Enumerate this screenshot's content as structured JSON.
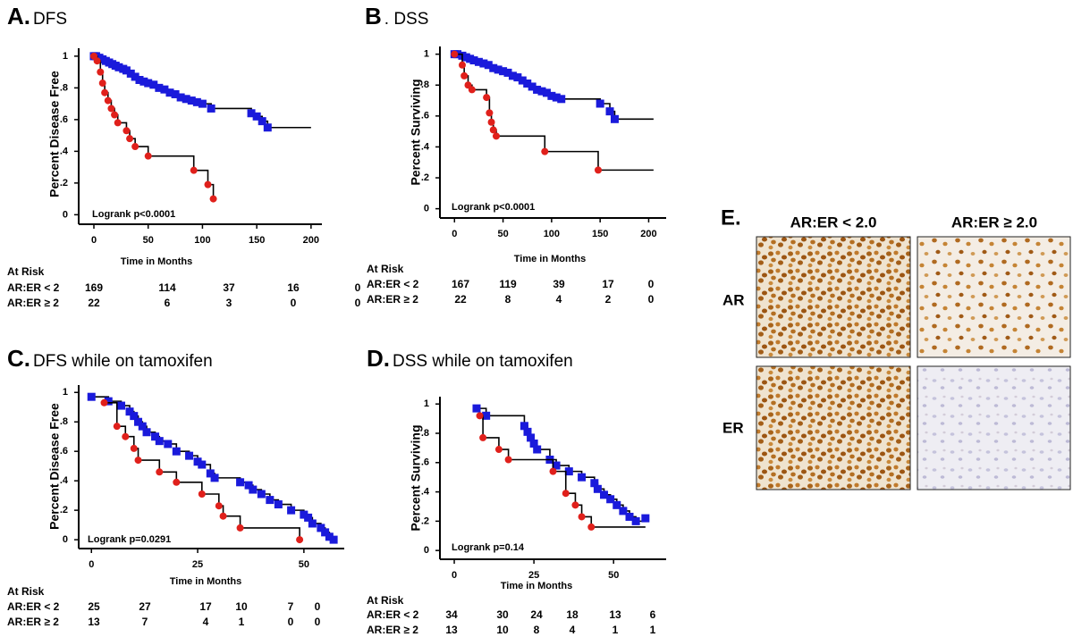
{
  "chart_data": [
    {
      "type": "step",
      "panel_label": "A.",
      "title": "DFS",
      "xlabel": "Time in Months",
      "ylabel": "Percent Disease Free",
      "annotation": "Logrank p<0.0001",
      "xlim": [
        -14,
        210
      ],
      "ylim": [
        -0.06,
        1.05
      ],
      "xticks": [
        0,
        50,
        100,
        150,
        200
      ],
      "yticks": [
        0,
        {
          "value": 0.2,
          "label": ".2"
        },
        {
          "value": 0.4,
          "label": ".4"
        },
        {
          "value": 0.6,
          "label": ".6"
        },
        {
          "value": 0.8,
          "label": ".8"
        },
        1
      ],
      "series": [
        {
          "color": "#1a1adb",
          "marker": "square",
          "line_end": 200,
          "x": [
            0,
            2,
            5,
            8,
            11,
            14,
            17,
            20,
            23,
            27,
            30,
            34,
            38,
            42,
            46,
            50,
            55,
            60,
            65,
            70,
            75,
            80,
            85,
            90,
            95,
            100,
            108,
            145,
            150,
            155,
            160
          ],
          "values": [
            1,
            1,
            0.99,
            0.98,
            0.97,
            0.96,
            0.95,
            0.94,
            0.93,
            0.92,
            0.91,
            0.89,
            0.87,
            0.85,
            0.84,
            0.83,
            0.82,
            0.8,
            0.79,
            0.77,
            0.76,
            0.74,
            0.73,
            0.72,
            0.71,
            0.7,
            0.67,
            0.64,
            0.62,
            0.59,
            0.55
          ]
        },
        {
          "color": "#e0201b",
          "marker": "circle",
          "x": [
            0,
            3,
            6,
            8,
            10,
            13,
            16,
            19,
            22,
            30,
            33,
            38,
            50,
            92,
            105,
            110
          ],
          "values": [
            1,
            0.97,
            0.9,
            0.83,
            0.77,
            0.72,
            0.67,
            0.63,
            0.58,
            0.53,
            0.48,
            0.43,
            0.37,
            0.28,
            0.19,
            0.1
          ]
        }
      ],
      "at_risk": {
        "title": "At Risk",
        "rows": [
          {
            "name": "AR:ER < 2",
            "values": [
              169,
              114,
              37,
              16,
              0
            ]
          },
          {
            "name": "AR:ER ≥ 2",
            "values": [
              22,
              6,
              3,
              0,
              0
            ]
          }
        ]
      }
    },
    {
      "type": "step",
      "panel_label": "B",
      "title": ". DSS",
      "xlabel": "Time in Months",
      "ylabel": "Percent Surviving",
      "annotation": "Logrank p<0.0001",
      "xlim": [
        -15,
        218
      ],
      "ylim": [
        -0.06,
        1.05
      ],
      "xticks": [
        0,
        50,
        100,
        150,
        200
      ],
      "yticks": [
        0,
        {
          "value": 0.2,
          "label": ".2"
        },
        {
          "value": 0.4,
          "label": ".4"
        },
        {
          "value": 0.6,
          "label": ".6"
        },
        {
          "value": 0.8,
          "label": ".8"
        },
        1
      ],
      "series": [
        {
          "color": "#1a1adb",
          "marker": "square",
          "line_end": 205,
          "x": [
            0,
            3,
            8,
            12,
            16,
            20,
            25,
            30,
            35,
            40,
            45,
            50,
            55,
            60,
            65,
            70,
            75,
            80,
            85,
            90,
            95,
            100,
            105,
            110,
            150,
            160,
            165
          ],
          "values": [
            1,
            1,
            0.99,
            0.98,
            0.97,
            0.96,
            0.95,
            0.94,
            0.93,
            0.91,
            0.9,
            0.89,
            0.88,
            0.86,
            0.85,
            0.83,
            0.81,
            0.79,
            0.77,
            0.76,
            0.75,
            0.73,
            0.72,
            0.71,
            0.68,
            0.63,
            0.58
          ]
        },
        {
          "color": "#e0201b",
          "marker": "circle",
          "line_end": 205,
          "x": [
            0,
            8,
            10,
            14,
            18,
            33,
            36,
            38,
            40,
            43,
            93,
            148
          ],
          "values": [
            1,
            0.93,
            0.86,
            0.8,
            0.77,
            0.72,
            0.62,
            0.56,
            0.51,
            0.47,
            0.37,
            0.25
          ]
        }
      ],
      "at_risk": {
        "title": "At Risk",
        "rows": [
          {
            "name": "AR:ER < 2",
            "values": [
              167,
              119,
              39,
              17,
              0
            ]
          },
          {
            "name": "AR:ER ≥ 2",
            "values": [
              22,
              8,
              4,
              2,
              0
            ]
          }
        ]
      }
    },
    {
      "type": "step",
      "panel_label": "C.",
      "title": "DFS  while on tamoxifen",
      "xlabel": "Time in Months",
      "ylabel": "Percent Disease Free",
      "annotation": "Logrank p=0.0291",
      "xlim": [
        -3,
        59.5
      ],
      "ylim": [
        -0.06,
        1.05
      ],
      "xticks": [
        0,
        25,
        50
      ],
      "yticks": [
        0,
        {
          "value": 0.2,
          "label": ".2"
        },
        {
          "value": 0.4,
          "label": ".4"
        },
        {
          "value": 0.6,
          "label": ".6"
        },
        {
          "value": 0.8,
          "label": ".8"
        },
        1
      ],
      "series": [
        {
          "color": "#1a1adb",
          "marker": "square",
          "x": [
            0,
            4,
            7,
            9,
            10,
            11,
            12,
            13,
            15,
            16,
            18,
            20,
            23,
            25,
            26,
            28,
            29,
            35,
            37,
            38,
            40,
            42,
            44,
            47,
            50,
            51,
            52,
            54,
            55,
            56,
            57
          ],
          "values": [
            0.97,
            0.94,
            0.91,
            0.87,
            0.84,
            0.8,
            0.77,
            0.73,
            0.7,
            0.67,
            0.65,
            0.6,
            0.57,
            0.53,
            0.51,
            0.45,
            0.42,
            0.39,
            0.37,
            0.34,
            0.31,
            0.27,
            0.24,
            0.2,
            0.17,
            0.15,
            0.11,
            0.08,
            0.05,
            0.02,
            0
          ]
        },
        {
          "color": "#e0201b",
          "marker": "circle",
          "x": [
            3,
            6,
            8,
            10,
            11,
            16,
            20,
            26,
            30,
            31,
            35,
            49
          ],
          "values": [
            0.93,
            0.77,
            0.7,
            0.62,
            0.54,
            0.46,
            0.39,
            0.31,
            0.23,
            0.16,
            0.08,
            0
          ]
        }
      ],
      "at_risk": {
        "title": "At Risk",
        "rows": [
          {
            "name": "AR:ER < 2",
            "values": [
              25,
              27,
              17,
              10,
              7,
              0
            ]
          },
          {
            "name": "AR:ER ≥ 2",
            "values": [
              13,
              7,
              4,
              1,
              0,
              0
            ]
          }
        ]
      }
    },
    {
      "type": "step",
      "panel_label": "D.",
      "title": "DSS while on tamoxifen",
      "xlabel": "Time in Months",
      "ylabel": "Percent Surviving",
      "annotation": "Logrank p=0.14",
      "xlim": [
        -4.5,
        66.5
      ],
      "ylim": [
        -0.06,
        1.05
      ],
      "xticks": [
        0,
        25,
        50
      ],
      "yticks": [
        0,
        {
          "value": 0.2,
          "label": ".2"
        },
        {
          "value": 0.4,
          "label": ".4"
        },
        {
          "value": 0.6,
          "label": ".6"
        },
        {
          "value": 0.8,
          "label": ".8"
        },
        1
      ],
      "series": [
        {
          "color": "#1a1adb",
          "marker": "square",
          "x": [
            7,
            10,
            22,
            23,
            24,
            25,
            26,
            30,
            32,
            36,
            40,
            44,
            45,
            47,
            49,
            51,
            53,
            55,
            57,
            60
          ],
          "values": [
            0.97,
            0.92,
            0.85,
            0.81,
            0.77,
            0.73,
            0.69,
            0.62,
            0.58,
            0.54,
            0.5,
            0.46,
            0.42,
            0.38,
            0.35,
            0.31,
            0.27,
            0.23,
            0.2,
            0.22
          ]
        },
        {
          "color": "#e0201b",
          "marker": "circle",
          "line_end": 60,
          "x": [
            8,
            9,
            14,
            17,
            31,
            35,
            38,
            40,
            43
          ],
          "values": [
            0.92,
            0.77,
            0.69,
            0.62,
            0.54,
            0.39,
            0.31,
            0.23,
            0.16
          ]
        }
      ],
      "at_risk": {
        "title": "At Risk",
        "rows": [
          {
            "name": "AR:ER < 2",
            "values": [
              34,
              30,
              24,
              18,
              13,
              6
            ]
          },
          {
            "name": "AR:ER ≥ 2",
            "values": [
              13,
              10,
              8,
              4,
              1,
              1
            ]
          }
        ]
      }
    }
  ],
  "panel_e": {
    "label": "E.",
    "columns": [
      "AR:ER < 2.0",
      "AR:ER ≥ 2.0"
    ],
    "rows": [
      "AR",
      "ER"
    ]
  }
}
